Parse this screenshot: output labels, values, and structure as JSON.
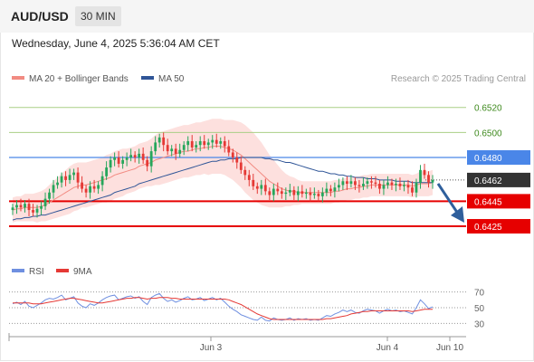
{
  "header": {
    "symbol": "AUD/USD",
    "timeframe": "30 MIN",
    "datetime": "Wednesday, June 4, 2025 5:36:04 AM CET"
  },
  "legend": {
    "ma20": "MA 20 + Bollinger Bands",
    "ma50": "MA 50",
    "credit": "Research © 2025 Trading Central",
    "rsi": "RSI",
    "rsi_ma": "9MA"
  },
  "colors": {
    "up": "#26a65b",
    "down": "#e53935",
    "ma20": "#f28b82",
    "ma50": "#2f5597",
    "band_fill": "#fde0de",
    "target_line": "#a9cf86",
    "target_text": "#3f8a1e",
    "resistance": "#4a86e8",
    "support": "#e60000",
    "current_tag": "#333333",
    "arrow": "#2f5f9c",
    "rsi_line": "#6f8fe0",
    "rsi_ma_line": "#e53935"
  },
  "chart_data": [
    {
      "type": "candlestick",
      "title": "AUD/USD 30 MIN",
      "x_tick_labels": [
        "Jun 3",
        "Jun 4",
        "Jun 10"
      ],
      "ylim": [
        0.6412,
        0.6535
      ],
      "levels": [
        {
          "value": 0.652,
          "label": "0.6520",
          "kind": "target"
        },
        {
          "value": 0.65,
          "label": "0.6500",
          "kind": "target"
        },
        {
          "value": 0.648,
          "label": "0.6480",
          "kind": "resistance"
        },
        {
          "value": 0.6462,
          "label": "0.6462",
          "kind": "current"
        },
        {
          "value": 0.6445,
          "label": "0.6445",
          "kind": "support"
        },
        {
          "value": 0.6425,
          "label": "0.6425",
          "kind": "support"
        }
      ],
      "close": [
        0.644,
        0.6442,
        0.644,
        0.6443,
        0.6438,
        0.6436,
        0.6439,
        0.6441,
        0.6447,
        0.6452,
        0.6458,
        0.646,
        0.6465,
        0.6462,
        0.6466,
        0.6468,
        0.646,
        0.6455,
        0.6452,
        0.6457,
        0.6455,
        0.6458,
        0.6465,
        0.6472,
        0.6478,
        0.648,
        0.6475,
        0.6478,
        0.648,
        0.6482,
        0.648,
        0.6483,
        0.6478,
        0.6473,
        0.6485,
        0.6492,
        0.6496,
        0.649,
        0.6485,
        0.6487,
        0.6483,
        0.6486,
        0.649,
        0.6493,
        0.6488,
        0.649,
        0.6493,
        0.649,
        0.6492,
        0.6494,
        0.6491,
        0.6493,
        0.6489,
        0.6484,
        0.648,
        0.6476,
        0.647,
        0.6466,
        0.6462,
        0.6457,
        0.6455,
        0.6458,
        0.6453,
        0.645,
        0.6455,
        0.6453,
        0.6451,
        0.6452,
        0.6454,
        0.645,
        0.6453,
        0.6451,
        0.6452,
        0.645,
        0.6451,
        0.6449,
        0.6452,
        0.6455,
        0.6453,
        0.6456,
        0.6458,
        0.6461,
        0.6459,
        0.6461,
        0.6458,
        0.6457,
        0.6459,
        0.6461,
        0.646,
        0.6459,
        0.6455,
        0.6458,
        0.646,
        0.6458,
        0.6459,
        0.6457,
        0.6458,
        0.6456,
        0.6452,
        0.646,
        0.647,
        0.6466,
        0.646,
        0.6462
      ],
      "ma20": [
        0.6438,
        0.6439,
        0.6439,
        0.644,
        0.644,
        0.644,
        0.644,
        0.6441,
        0.6442,
        0.6444,
        0.6446,
        0.6448,
        0.645,
        0.6452,
        0.6454,
        0.6456,
        0.6457,
        0.6458,
        0.6458,
        0.6459,
        0.646,
        0.6461,
        0.6462,
        0.6463,
        0.6464,
        0.6466,
        0.6467,
        0.6468,
        0.6469,
        0.647,
        0.6471,
        0.6473,
        0.6474,
        0.6475,
        0.6476,
        0.6478,
        0.6479,
        0.648,
        0.6481,
        0.6482,
        0.6483,
        0.6484,
        0.6485,
        0.6485,
        0.6486,
        0.6487,
        0.6487,
        0.6488,
        0.6488,
        0.6489,
        0.6489,
        0.6489,
        0.6488,
        0.6487,
        0.6486,
        0.6484,
        0.6482,
        0.6479,
        0.6476,
        0.6473,
        0.647,
        0.6467,
        0.6464,
        0.6461,
        0.6459,
        0.6457,
        0.6455,
        0.6454,
        0.6453,
        0.6453,
        0.6452,
        0.6452,
        0.6452,
        0.6452,
        0.6452,
        0.6452,
        0.6452,
        0.6452,
        0.6452,
        0.6453,
        0.6453,
        0.6454,
        0.6455,
        0.6455,
        0.6456,
        0.6456,
        0.6457,
        0.6457,
        0.6458,
        0.6458,
        0.6458,
        0.6458,
        0.6458,
        0.6458,
        0.6458,
        0.6458,
        0.6458,
        0.6458,
        0.6457,
        0.6458,
        0.6459,
        0.6459,
        0.6459,
        0.646
      ],
      "ma50": [
        0.643,
        0.6431,
        0.6431,
        0.6432,
        0.6432,
        0.6433,
        0.6433,
        0.6434,
        0.6434,
        0.6435,
        0.6436,
        0.6437,
        0.6438,
        0.6439,
        0.644,
        0.6441,
        0.6442,
        0.6443,
        0.6444,
        0.6445,
        0.6446,
        0.6447,
        0.6448,
        0.6449,
        0.645,
        0.6452,
        0.6453,
        0.6454,
        0.6455,
        0.6456,
        0.6457,
        0.6459,
        0.646,
        0.6461,
        0.6462,
        0.6463,
        0.6464,
        0.6465,
        0.6466,
        0.6467,
        0.6468,
        0.6469,
        0.647,
        0.6471,
        0.6472,
        0.6473,
        0.6474,
        0.6475,
        0.6476,
        0.6477,
        0.6477,
        0.6478,
        0.6478,
        0.6479,
        0.6479,
        0.6479,
        0.648,
        0.648,
        0.648,
        0.648,
        0.648,
        0.648,
        0.6479,
        0.6479,
        0.6478,
        0.6478,
        0.6477,
        0.6476,
        0.6476,
        0.6475,
        0.6474,
        0.6473,
        0.6472,
        0.6471,
        0.647,
        0.6469,
        0.6469,
        0.6468,
        0.6467,
        0.6467,
        0.6466,
        0.6466,
        0.6465,
        0.6465,
        0.6464,
        0.6464,
        0.6464,
        0.6463,
        0.6463,
        0.6463,
        0.6462,
        0.6462,
        0.6462,
        0.6462,
        0.6461,
        0.6461,
        0.6461,
        0.6461,
        0.646,
        0.646,
        0.646,
        0.646,
        0.646,
        0.646
      ],
      "band_width": [
        0.001,
        0.001,
        0.001,
        0.0011,
        0.0011,
        0.0011,
        0.0012,
        0.0012,
        0.0013,
        0.0014,
        0.0015,
        0.0016,
        0.0017,
        0.0018,
        0.0019,
        0.0019,
        0.0019,
        0.0018,
        0.0018,
        0.0018,
        0.0018,
        0.0018,
        0.0018,
        0.0019,
        0.0019,
        0.0019,
        0.0019,
        0.0019,
        0.0018,
        0.0018,
        0.0018,
        0.0018,
        0.0018,
        0.0018,
        0.0019,
        0.002,
        0.0021,
        0.0021,
        0.0021,
        0.0021,
        0.0021,
        0.0021,
        0.0021,
        0.0021,
        0.0021,
        0.0021,
        0.0021,
        0.0021,
        0.0022,
        0.0022,
        0.0022,
        0.0022,
        0.0022,
        0.0023,
        0.0024,
        0.0025,
        0.0026,
        0.0027,
        0.0027,
        0.0027,
        0.0026,
        0.0025,
        0.0023,
        0.0021,
        0.0019,
        0.0017,
        0.0015,
        0.0013,
        0.0012,
        0.0011,
        0.001,
        0.0009,
        0.0009,
        0.0009,
        0.0009,
        0.0009,
        0.0009,
        0.0009,
        0.0009,
        0.0009,
        0.0009,
        0.0009,
        0.0009,
        0.0009,
        0.0009,
        0.0009,
        0.0009,
        0.0009,
        0.0009,
        0.0009,
        0.0009,
        0.0009,
        0.0009,
        0.0009,
        0.0009,
        0.0009,
        0.0009,
        0.0009,
        0.0009,
        0.0009,
        0.001,
        0.001,
        0.001,
        0.001
      ]
    },
    {
      "type": "line",
      "title": "RSI",
      "y_tick_labels": [
        "70",
        "50",
        "30"
      ],
      "ylim": [
        20,
        80
      ],
      "reference_lines": [
        70,
        50,
        30
      ],
      "series": [
        {
          "name": "RSI",
          "values": [
            55,
            57,
            54,
            58,
            52,
            50,
            53,
            56,
            60,
            62,
            61,
            63,
            66,
            60,
            62,
            64,
            56,
            52,
            50,
            55,
            53,
            56,
            60,
            63,
            65,
            66,
            60,
            62,
            64,
            65,
            62,
            64,
            58,
            54,
            63,
            66,
            68,
            62,
            58,
            60,
            57,
            59,
            62,
            64,
            60,
            61,
            63,
            59,
            61,
            63,
            60,
            62,
            57,
            52,
            48,
            45,
            41,
            39,
            37,
            35,
            34,
            38,
            34,
            33,
            37,
            35,
            34,
            35,
            37,
            34,
            36,
            35,
            36,
            34,
            35,
            34,
            37,
            40,
            39,
            42,
            44,
            47,
            45,
            47,
            44,
            43,
            46,
            48,
            47,
            46,
            43,
            46,
            48,
            46,
            47,
            45,
            46,
            44,
            42,
            50,
            60,
            55,
            49,
            51
          ]
        },
        {
          "name": "9MA",
          "values": [
            56,
            56,
            56,
            56,
            56,
            55,
            55,
            55,
            56,
            57,
            58,
            59,
            60,
            61,
            62,
            62,
            61,
            60,
            59,
            58,
            57,
            56,
            56,
            57,
            58,
            59,
            60,
            61,
            62,
            62,
            63,
            63,
            62,
            61,
            62,
            62,
            63,
            63,
            63,
            62,
            62,
            61,
            61,
            61,
            61,
            61,
            61,
            61,
            61,
            61,
            61,
            61,
            61,
            60,
            58,
            56,
            54,
            51,
            48,
            45,
            42,
            40,
            38,
            36,
            35,
            35,
            35,
            35,
            35,
            35,
            35,
            35,
            35,
            35,
            35,
            35,
            35,
            36,
            36,
            37,
            38,
            39,
            40,
            42,
            43,
            44,
            45,
            45,
            46,
            46,
            46,
            46,
            46,
            46,
            46,
            46,
            46,
            46,
            45,
            46,
            47,
            48,
            48,
            48
          ]
        }
      ]
    }
  ]
}
